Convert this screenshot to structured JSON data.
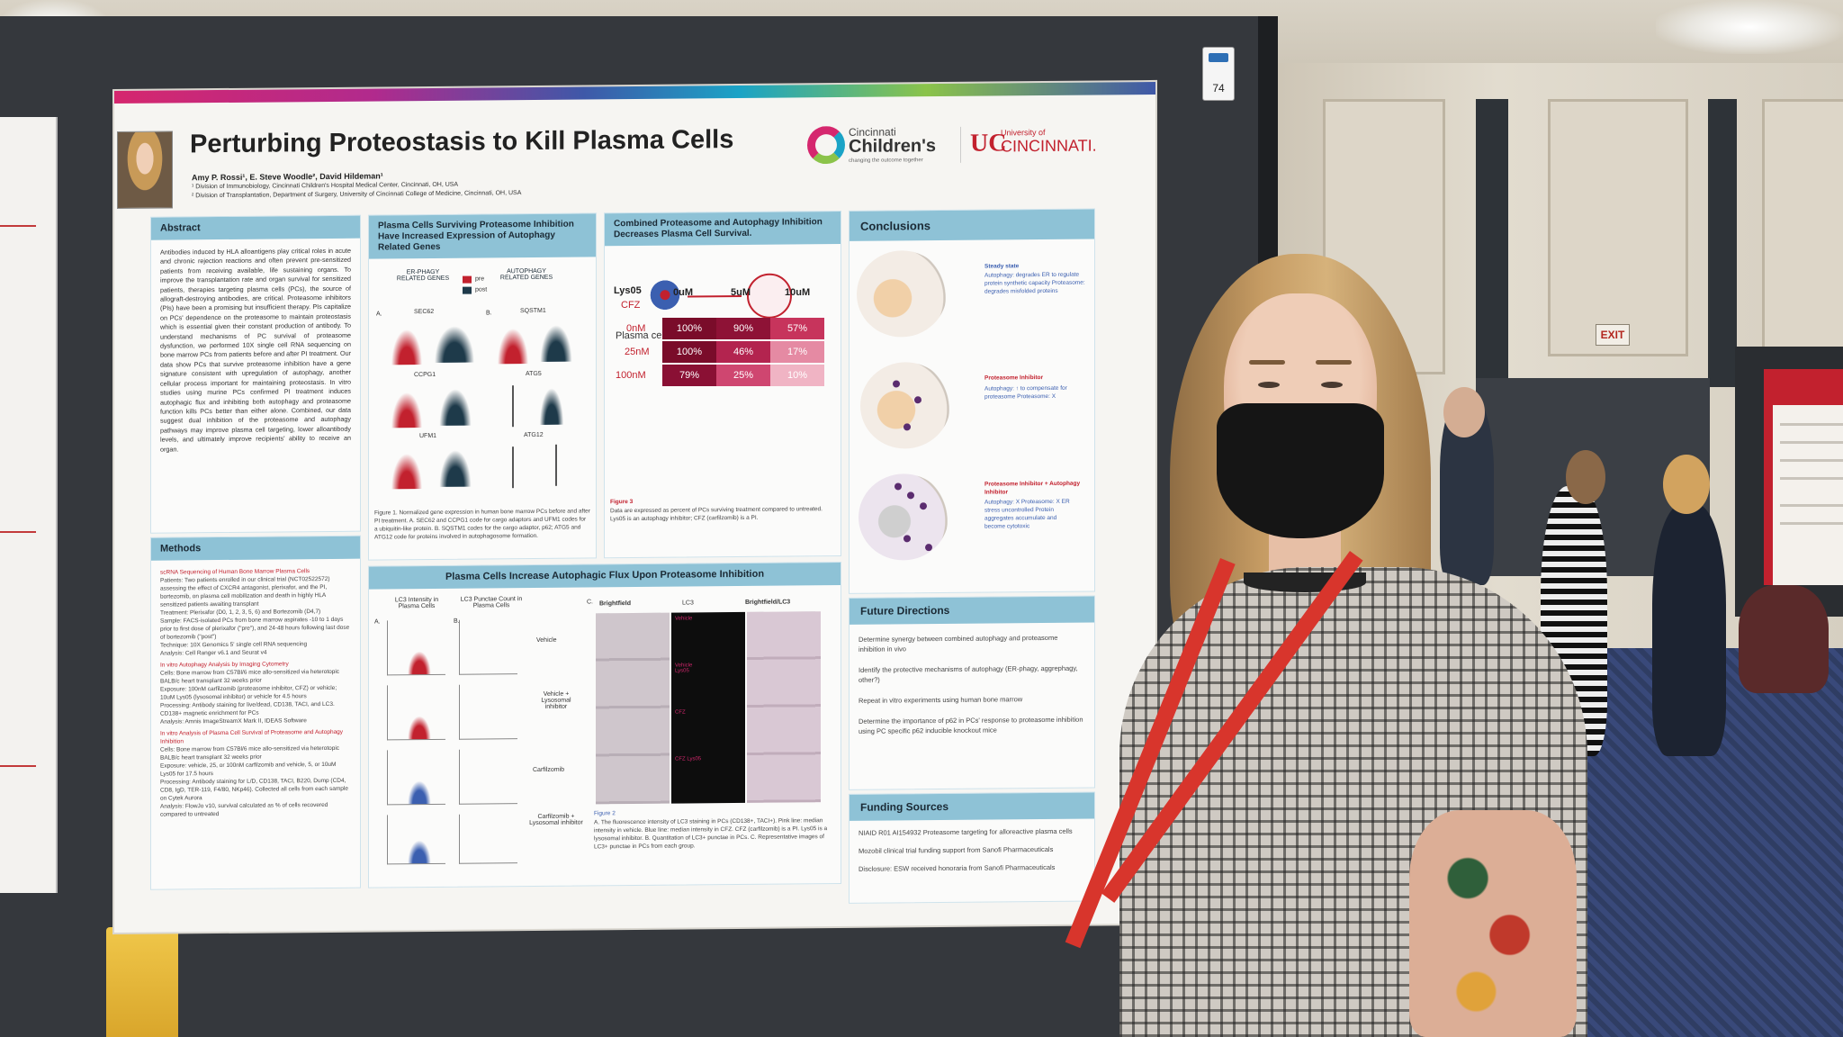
{
  "scene": {
    "exit_sign": "EXIT",
    "board_tag_number": "74"
  },
  "poster": {
    "title": "Perturbing Proteostasis to Kill Plasma Cells",
    "authors": "Amy P. Rossi¹, E. Steve Woodle², David Hildeman¹",
    "affiliations": [
      "¹ Division of Immunobiology, Cincinnati Children's Hospital Medical Center, Cincinnati, OH, USA",
      "² Division of Transplantation, Department of Surgery, University of Cincinnati College of Medicine, Cincinnati, OH, USA"
    ],
    "logos": {
      "cc_small": "Cincinnati",
      "cc_large": "Children's",
      "cc_tag": "changing the outcome together",
      "uc_small": "University of",
      "uc_large": "CINCINNATI."
    },
    "abstract": {
      "heading": "Abstract",
      "text": "Antibodies induced by HLA alloantigens play critical roles in acute and chronic rejection reactions and often prevent pre-sensitized patients from receiving available, life sustaining organs. To improve the transplantation rate and organ survival for sensitized patients, therapies targeting plasma cells (PCs), the source of allograft-destroying antibodies, are critical. Proteasome inhibitors (PIs) have been a promising but insufficient therapy. PIs capitalize on PCs' dependence on the proteasome to maintain proteostasis which is essential given their constant production of antibody. To understand mechanisms of PC survival of proteasome dysfunction, we performed 10X single cell RNA sequencing on bone marrow PCs from patients before and after PI treatment. Our data show PCs that survive proteasome inhibition have a gene signature consistent with upregulation of autophagy, another cellular process important for maintaining proteostasis. In vitro studies using murine PCs confirmed PI treatment induces autophagic flux and inhibiting both autophagy and proteasome function kills PCs better than either alone. Combined, our data suggest dual inhibition of the proteasome and autophagy pathways may improve plasma cell targeting, lower alloantibody levels, and ultimately improve recipients' ability to receive an organ."
    },
    "methods": {
      "heading": "Methods",
      "lines": [
        "scRNA Sequencing of Human Bone Marrow Plasma Cells",
        "Patients: Two patients enrolled in our clinical trial (NCT02522572) assessing the effect of CXCR4 antagonist, plerixafor, and the PI, bortezomib, on plasma cell mobilization and death in highly HLA sensitized patients awaiting transplant",
        "Treatment: Plerixafor (D0, 1, 2, 3, 5, 6) and Bortezomib (D4,7)",
        "Sample: FACS-isolated PCs from bone marrow aspirates -10 to 1 days prior to first dose of plerixafor (\"pre\"), and 24-48 hours following last dose of bortezomib (\"post\")",
        "Technique: 10X Genomics 5' single cell RNA sequencing",
        "Analysis: Cell Ranger v6.1 and Seurat v4",
        "In vitro Autophagy Analysis by Imaging Cytometry",
        "Cells: Bone marrow from C57Bl/6 mice allo-sensitized via heterotopic BALB/c heart transplant 32 weeks prior",
        "Exposure: 100nM carfilzomib (proteasome inhibitor, CFZ) or vehicle; 10uM Lys05 (lysosomal inhibitor) or vehicle for 4.5 hours",
        "Processing: Antibody staining for live/dead, CD138, TACI, and LC3. CD138+ magnetic enrichment for PCs",
        "Analysis: Amnis ImageStreamX Mark II, IDEAS Software",
        "In vitro Analysis of Plasma Cell Survival of Proteasome and Autophagy Inhibition",
        "Cells: Bone marrow from C57Bl/6 mice allo-sensitized via heterotopic BALB/c heart transplant 32 weeks prior",
        "Exposure: vehicle, 25, or 100nM carfilzomib and vehicle, 5, or 10uM Lys05 for 17.5 hours",
        "Processing: Antibody staining for L/D, CD138, TACI, B220, Dump (CD4, CD8, IgD, TER-119, F4/80, NKp46). Collected all cells from each sample on Cytek Aurora",
        "Analysis: FlowJo v10, survival calculated as % of cells recovered compared to untreated"
      ]
    },
    "fig1": {
      "heading": "Plasma Cells Surviving Proteasome Inhibition Have Increased Expression of Autophagy Related Genes",
      "er_phagy": "ER-PHAGY RELATED GENES",
      "autophagy": "AUTOPHAGY RELATED GENES",
      "legend_pre": "pre",
      "legend_post": "post",
      "panel_a": "A.",
      "panel_b": "B.",
      "genes": [
        "SEC62",
        "SQSTM1",
        "CCPG1",
        "ATG5",
        "UFM1",
        "ATG12"
      ],
      "caption": "Figure 1. Normalized gene expression in human bone marrow PCs before and after PI treatment. A. SEC62 and CCPG1 code for cargo adaptors and UFM1 codes for a ubiquitin-like protein. B. SQSTM1 codes for the cargo adaptor, p62; ATG5 and ATG12 code for proteins involved in autophagosome formation."
    },
    "fig2": {
      "heading": "Plasma Cells Increase Autophagic Flux Upon Proteasome Inhibition",
      "col_a": "LC3 Intensity in Plasma Cells",
      "col_b": "LC3 Punctae Count in Plasma Cells",
      "panel_a": "A.",
      "panel_b": "B.",
      "panel_c": "C.",
      "conditions": [
        "Vehicle",
        "Vehicle + Lysosomal inhibitor",
        "Carfilzomib",
        "Carfilzomib + Lysosomal inhibitor"
      ],
      "micro_headers": [
        "Brightfield",
        "LC3",
        "Brightfield/LC3"
      ],
      "micro_labels": [
        "Vehicle",
        "Vehicle Lys05",
        "CFZ",
        "CFZ Lys05"
      ],
      "caption_title": "Figure 2",
      "caption": "A. The fluorescence intensity of LC3 staining in PCs (CD138+, TACI+). Pink line: median intensity in vehicle. Blue line: median intensity in CFZ. CFZ (carfilzomib) is a PI. Lys05 is a lysosomal inhibitor. B. Quantitation of LC3+ punctae in PCs. C. Representative images of LC3+ punctae in PCs from each group."
    },
    "fig3": {
      "heading": "Combined Proteasome and Autophagy Inhibition Decreases Plasma Cell Survival.",
      "table_title": "Plasma cell survival relative to untreated",
      "row_axis": "Lys05",
      "col_axis": "CFZ",
      "columns": [
        "0uM",
        "5uM",
        "10uM"
      ],
      "rows": [
        {
          "label": "0nM",
          "values": [
            "100%",
            "90%",
            "57%"
          ],
          "colors": [
            "#7a0c2a",
            "#8e1236",
            "#c7345c"
          ]
        },
        {
          "label": "25nM",
          "values": [
            "100%",
            "46%",
            "17%"
          ],
          "colors": [
            "#7a0c2a",
            "#b3244f",
            "#e58aa3"
          ]
        },
        {
          "label": "100nM",
          "values": [
            "79%",
            "25%",
            "10%"
          ],
          "colors": [
            "#8a1034",
            "#cf4670",
            "#f0b4c4"
          ]
        }
      ],
      "caption_title": "Figure 3",
      "caption": "Data are expressed as percent of PCs surviving treatment compared to untreated. Lys05 is an autophagy inhibitor; CFZ (carfilzomib) is a PI."
    },
    "conclusions": {
      "heading": "Conclusions",
      "steady_title": "Steady state",
      "steady_text": "Autophagy: degrades ER to regulate protein synthetic capacity Proteasome: degrades misfolded proteins",
      "pi_title": "Proteasome Inhibitor",
      "pi_text": "Autophagy: ↑ to compensate for proteasome Proteasome: X",
      "combo_title": "Proteasome Inhibitor + Autophagy Inhibitor",
      "combo_text": "Autophagy: X Proteasome: X ER stress uncontrolled Protein aggregates accumulate and become cytotoxic"
    },
    "future": {
      "heading": "Future Directions",
      "items": [
        "Determine synergy between combined autophagy and proteasome inhibition in vivo",
        "Identify the protective mechanisms of autophagy (ER-phagy, aggrephagy, other?)",
        "Repeat in vitro experiments using human bone marrow",
        "Determine the importance of p62 in PCs' response to proteasome inhibition using PC specific p62 inducible knockout mice"
      ]
    },
    "funding": {
      "heading": "Funding Sources",
      "items": [
        "NIAID R01 AI154932 Proteasome targeting for alloreactive plasma cells",
        "Mozobil clinical trial funding support from Sanofi Pharmaceuticals",
        "Disclosure: ESW received honoraria from Sanofi Pharmaceuticals"
      ]
    }
  }
}
